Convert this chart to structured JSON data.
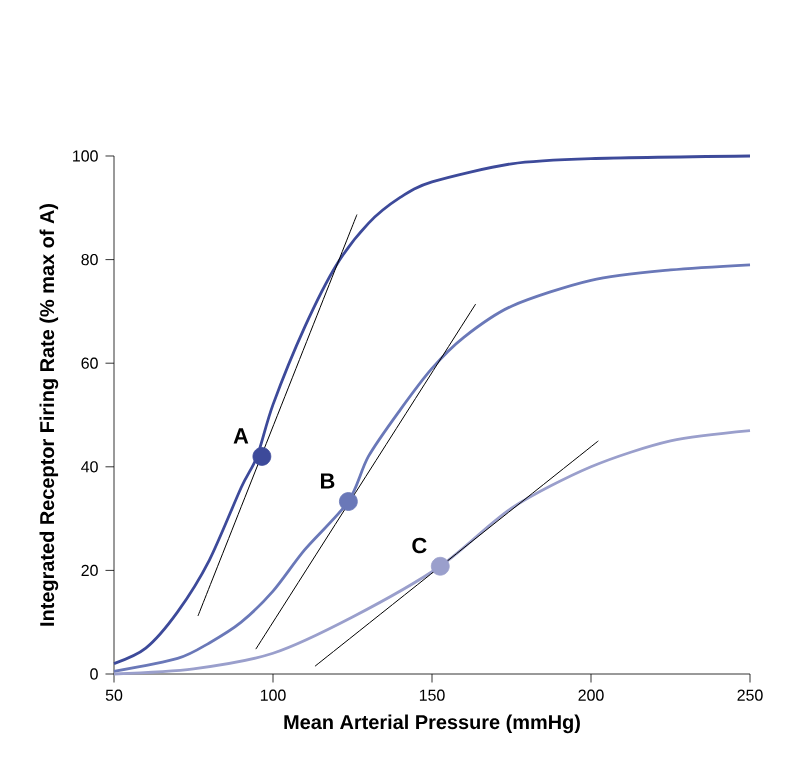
{
  "chart_data": {
    "type": "line",
    "xlabel": "Mean Arterial Pressure (mmHg)",
    "ylabel": "Integrated Receptor Firing Rate (% max of A)",
    "xlim": [
      50,
      250
    ],
    "ylim": [
      0,
      100
    ],
    "xticks": [
      50,
      100,
      150,
      200,
      250
    ],
    "yticks": [
      0,
      20,
      40,
      60,
      80,
      100
    ],
    "grid": false,
    "series": [
      {
        "color": "#3d4a9a",
        "x": [
          50,
          60,
          70,
          80,
          90,
          95,
          100,
          110,
          120,
          130,
          140,
          150,
          175,
          200,
          250
        ],
        "values": [
          2,
          5,
          12,
          22,
          36,
          42,
          52,
          67,
          79,
          87,
          92,
          95,
          98.5,
          99.5,
          100
        ]
      },
      {
        "color": "#6a78b8",
        "x": [
          50,
          70,
          80,
          90,
          100,
          110,
          123.7,
          130,
          140,
          150,
          160,
          175,
          200,
          225,
          250
        ],
        "values": [
          0.5,
          3,
          6,
          10,
          16,
          24,
          33.3,
          42,
          51,
          59,
          65,
          71,
          76,
          78,
          79
        ]
      },
      {
        "color": "#9a9fcc",
        "x": [
          50,
          75,
          100,
          125,
          152.6,
          175,
          200,
          225,
          250
        ],
        "values": [
          0,
          1,
          4,
          11,
          20.8,
          32,
          40,
          45,
          47
        ]
      },
      {
        "color": "#000000",
        "x": [
          76.4,
          126.4
        ],
        "values": [
          11.2,
          88.7
        ]
      },
      {
        "color": "#000000",
        "x": [
          94.6,
          163.7
        ],
        "values": [
          4.8,
          71.4
        ]
      },
      {
        "color": "#000000",
        "x": [
          113.2,
          202.3
        ],
        "values": [
          1.5,
          45
        ]
      },
      {
        "type": "scatter",
        "marker": "circle",
        "x": [
          96.5,
          123.7,
          152.6
        ],
        "values": [
          42,
          33.3,
          20.8
        ],
        "colors": [
          "#3d4a9a",
          "#6a78b8",
          "#9a9fcc"
        ]
      }
    ],
    "annotations": [
      {
        "text": "A",
        "x": 96.5,
        "y": 42
      },
      {
        "text": "B",
        "x": 123.7,
        "y": 33.3
      },
      {
        "text": "C",
        "x": 152.6,
        "y": 20.8
      }
    ]
  }
}
